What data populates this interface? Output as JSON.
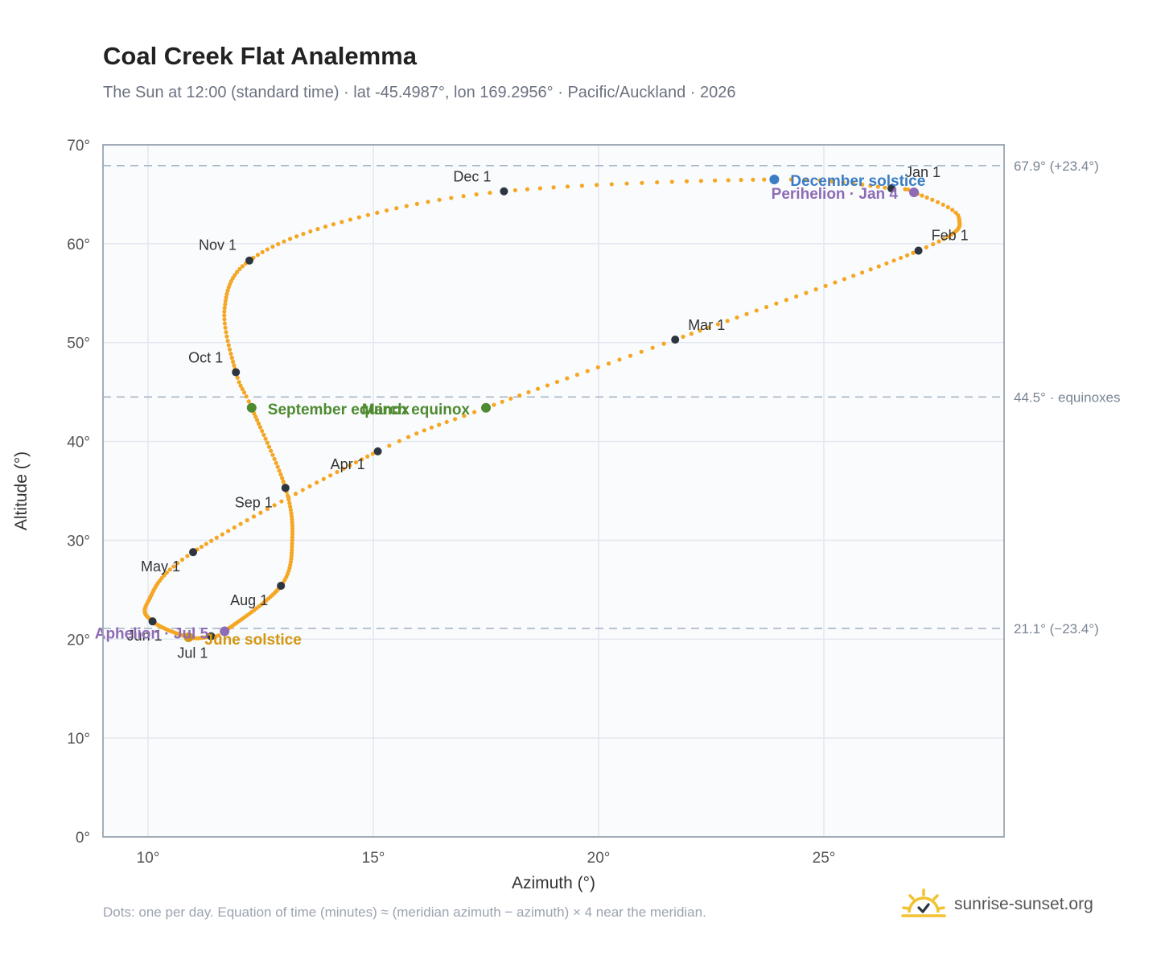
{
  "title": "Coal Creek Flat Analemma",
  "subtitle": "The Sun at 12:00 (standard time) · lat -45.4987°, lon 169.2956° · Pacific/Auckland · 2026",
  "footnote": "Dots: one per day. Equation of time (minutes) ≈ (meridian azimuth − azimuth) × 4 near the meridian.",
  "brand": {
    "name": "sunrise-sunset.org",
    "icon": "sun-check-icon"
  },
  "colors": {
    "curve": "#f5a623",
    "month_marker": "#2d3540",
    "december_solstice": "#3b7cc4",
    "june_solstice": "#d4960f",
    "equinox": "#4e8a2f",
    "apsis": "#8e6bb5",
    "reference_line": "#a8b8c6",
    "plot_background": "#f9fbfd",
    "plot_border": "#9aa5b1",
    "grid": "#e3e8ee"
  },
  "chart_data": {
    "type": "scatter",
    "title": "Coal Creek Flat Analemma",
    "xlabel": "Azimuth (°)",
    "ylabel": "Altitude (°)",
    "xlim": [
      9,
      29
    ],
    "ylim": [
      0,
      70
    ],
    "x_ticks": [
      10,
      15,
      20,
      25
    ],
    "x_tick_labels": [
      "10°",
      "15°",
      "20°",
      "25°"
    ],
    "y_ticks": [
      0,
      10,
      20,
      30,
      40,
      50,
      60,
      70
    ],
    "y_tick_labels": [
      "0°",
      "10°",
      "20°",
      "30°",
      "40°",
      "50°",
      "60°",
      "70°"
    ],
    "grid": true,
    "reference_lines": [
      {
        "y": 67.9,
        "label": "67.9° (+23.4°)"
      },
      {
        "y": 44.5,
        "label": "44.5° · equinoxes"
      },
      {
        "y": 21.1,
        "label": "21.1° (−23.4°)"
      }
    ],
    "month_markers": [
      {
        "label": "Jan 1",
        "x": 26.5,
        "y": 65.6
      },
      {
        "label": "Feb 1",
        "x": 27.1,
        "y": 59.3
      },
      {
        "label": "Mar 1",
        "x": 21.7,
        "y": 50.3
      },
      {
        "label": "Apr 1",
        "x": 15.1,
        "y": 39.0
      },
      {
        "label": "May 1",
        "x": 11.0,
        "y": 28.8
      },
      {
        "label": "Jun 1",
        "x": 10.1,
        "y": 21.8
      },
      {
        "label": "Jul 1",
        "x": 11.4,
        "y": 20.3
      },
      {
        "label": "Aug 1",
        "x": 12.95,
        "y": 25.4
      },
      {
        "label": "Sep 1",
        "x": 13.05,
        "y": 35.3
      },
      {
        "label": "Oct 1",
        "x": 11.95,
        "y": 47.0
      },
      {
        "label": "Nov 1",
        "x": 12.25,
        "y": 58.3
      },
      {
        "label": "Dec 1",
        "x": 17.9,
        "y": 65.3
      }
    ],
    "events": [
      {
        "label": "December solstice",
        "x": 23.9,
        "y": 66.5,
        "color_key": "december_solstice"
      },
      {
        "label": "Perihelion · Jan 4",
        "x": 27.0,
        "y": 65.2,
        "color_key": "apsis"
      },
      {
        "label": "March equinox",
        "x": 17.5,
        "y": 43.4,
        "color_key": "equinox"
      },
      {
        "label": "September equinox",
        "x": 12.3,
        "y": 43.4,
        "color_key": "equinox"
      },
      {
        "label": "June solstice",
        "x": 10.9,
        "y": 20.2,
        "color_key": "june_solstice"
      },
      {
        "label": "Aphelion · Jul 5",
        "x": 11.7,
        "y": 20.8,
        "color_key": "apsis"
      }
    ],
    "daily_path_anchors": [
      {
        "day": 1,
        "x": 26.5,
        "y": 65.6
      },
      {
        "day": 4,
        "x": 27.0,
        "y": 65.2
      },
      {
        "day": 15,
        "x": 28.0,
        "y": 62.6
      },
      {
        "day": 32,
        "x": 27.1,
        "y": 59.3
      },
      {
        "day": 60,
        "x": 21.7,
        "y": 50.3
      },
      {
        "day": 79,
        "x": 17.5,
        "y": 43.4
      },
      {
        "day": 91,
        "x": 15.1,
        "y": 39.0
      },
      {
        "day": 121,
        "x": 11.0,
        "y": 28.8
      },
      {
        "day": 140,
        "x": 10.0,
        "y": 23.8
      },
      {
        "day": 152,
        "x": 10.1,
        "y": 21.8
      },
      {
        "day": 172,
        "x": 10.9,
        "y": 20.2
      },
      {
        "day": 182,
        "x": 11.4,
        "y": 20.3
      },
      {
        "day": 186,
        "x": 11.7,
        "y": 20.8
      },
      {
        "day": 213,
        "x": 12.95,
        "y": 25.4
      },
      {
        "day": 228,
        "x": 13.2,
        "y": 30.0
      },
      {
        "day": 244,
        "x": 13.05,
        "y": 35.3
      },
      {
        "day": 266,
        "x": 12.3,
        "y": 43.4
      },
      {
        "day": 274,
        "x": 11.95,
        "y": 47.0
      },
      {
        "day": 290,
        "x": 11.7,
        "y": 53.5
      },
      {
        "day": 305,
        "x": 12.25,
        "y": 58.3
      },
      {
        "day": 320,
        "x": 14.3,
        "y": 62.2
      },
      {
        "day": 335,
        "x": 17.9,
        "y": 65.3
      },
      {
        "day": 355,
        "x": 23.9,
        "y": 66.5
      },
      {
        "day": 366,
        "x": 26.5,
        "y": 65.6
      }
    ]
  }
}
